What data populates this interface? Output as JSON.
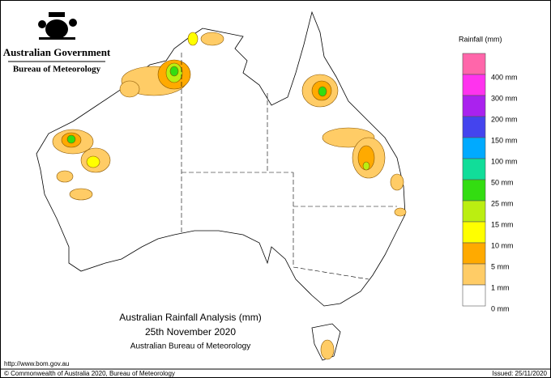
{
  "header": {
    "government": "Australian Government",
    "agency": "Bureau of Meteorology"
  },
  "legend": {
    "title": "Rainfall (mm)",
    "items": [
      {
        "label": "400 mm",
        "color": "#ff66aa"
      },
      {
        "label": "300 mm",
        "color": "#ff33ee"
      },
      {
        "label": "200 mm",
        "color": "#aa22ee"
      },
      {
        "label": "150 mm",
        "color": "#4444ee"
      },
      {
        "label": "100 mm",
        "color": "#00aaff"
      },
      {
        "label": "50 mm",
        "color": "#11dd99"
      },
      {
        "label": "25 mm",
        "color": "#33dd11"
      },
      {
        "label": "15 mm",
        "color": "#bbee11"
      },
      {
        "label": "10 mm",
        "color": "#ffff00"
      },
      {
        "label": "5 mm",
        "color": "#ffaa00"
      },
      {
        "label": "1 mm",
        "color": "#ffcc66"
      },
      {
        "label": "0 mm",
        "color": "#ffffff"
      }
    ]
  },
  "map_title": {
    "line1": "Australian Rainfall Analysis (mm)",
    "line2": "25th November 2020",
    "line3": "Australian Bureau of Meteorology"
  },
  "footer": {
    "url": "http://www.bom.gov.au",
    "copyright": "© Commonwealth of Australia 2020, Bureau of Meteorology",
    "issued": "Issued: 25/11/2020"
  }
}
